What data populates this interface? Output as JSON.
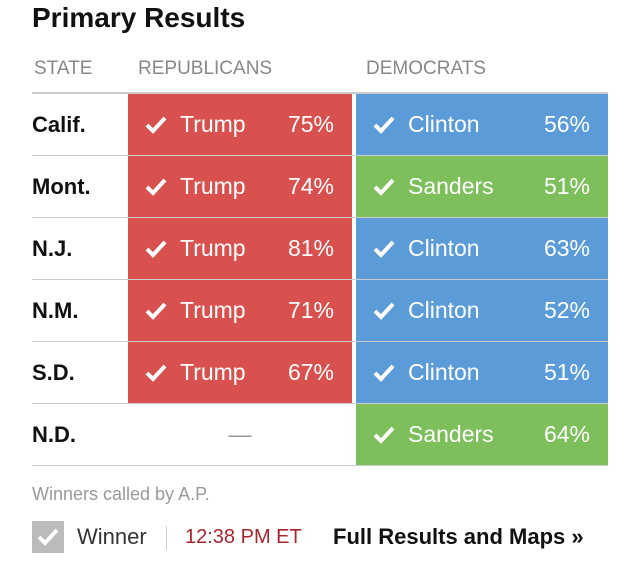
{
  "header": {
    "title": "Primary Results"
  },
  "table": {
    "columns": [
      "STATE",
      "REPUBLICANS",
      "DEMOCRATS"
    ],
    "rows": [
      {
        "state": "Calif.",
        "rep": {
          "name": "Trump",
          "pct": "75%",
          "color": "#d9514e"
        },
        "dem": {
          "name": "Clinton",
          "pct": "56%",
          "color": "#5b9cd8"
        }
      },
      {
        "state": "Mont.",
        "rep": {
          "name": "Trump",
          "pct": "74%",
          "color": "#d9514e"
        },
        "dem": {
          "name": "Sanders",
          "pct": "51%",
          "color": "#7dbf5b"
        }
      },
      {
        "state": "N.J.",
        "rep": {
          "name": "Trump",
          "pct": "81%",
          "color": "#d9514e"
        },
        "dem": {
          "name": "Clinton",
          "pct": "63%",
          "color": "#5b9cd8"
        }
      },
      {
        "state": "N.M.",
        "rep": {
          "name": "Trump",
          "pct": "71%",
          "color": "#d9514e"
        },
        "dem": {
          "name": "Clinton",
          "pct": "52%",
          "color": "#5b9cd8"
        }
      },
      {
        "state": "S.D.",
        "rep": {
          "name": "Trump",
          "pct": "67%",
          "color": "#d9514e"
        },
        "dem": {
          "name": "Clinton",
          "pct": "51%",
          "color": "#5b9cd8"
        }
      },
      {
        "state": "N.D.",
        "rep": {
          "empty": "—"
        },
        "dem": {
          "name": "Sanders",
          "pct": "64%",
          "color": "#7dbf5b"
        }
      }
    ]
  },
  "footer": {
    "note": "Winners called by A.P.",
    "legend": "Winner",
    "time": "12:38 PM ET",
    "link": "Full Results and Maps »"
  }
}
